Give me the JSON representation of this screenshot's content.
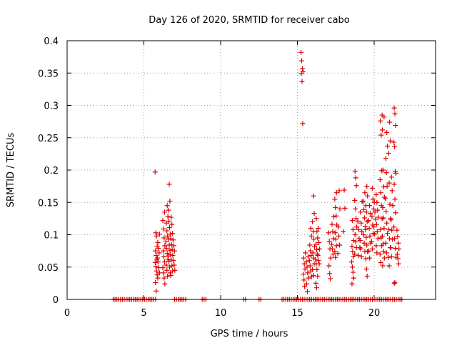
{
  "chart_data": {
    "type": "scatter",
    "title": "Day 126 of 2020, SRMTID for receiver cabo",
    "xlabel": "GPS time / hours",
    "ylabel": "SRMTID / TECUs",
    "xlim": [
      0,
      24
    ],
    "ylim": [
      0,
      0.4
    ],
    "grid": true,
    "x_ticks": [
      0,
      5,
      10,
      15,
      20
    ],
    "y_ticks": [
      0,
      0.05,
      0.1,
      0.15,
      0.2,
      0.25,
      0.3,
      0.35,
      0.4
    ],
    "x_tick_labels": [
      "0",
      "5",
      "10",
      "15",
      "20"
    ],
    "y_tick_labels": [
      "0",
      "0.05",
      "0.1",
      "0.15",
      "0.2",
      "0.25",
      "0.3",
      "0.35",
      "0.4"
    ],
    "marker": "+",
    "series": [
      {
        "name": "SRMTID",
        "color": "#e00000",
        "baseline_ranges": [
          [
            3.0,
            5.8
          ],
          [
            7.0,
            7.8
          ],
          [
            8.8,
            9.1
          ],
          [
            11.5,
            11.7
          ],
          [
            12.5,
            12.7
          ],
          [
            14.0,
            21.8
          ]
        ],
        "baseline_step": 0.12,
        "clusters": [
          {
            "x": 5.8,
            "values": [
              0.197,
              0.103,
              0.098,
              0.082,
              0.075,
              0.068,
              0.062,
              0.057,
              0.051,
              0.044,
              0.038,
              0.026,
              0.013
            ]
          },
          {
            "x": 5.95,
            "values": [
              0.101,
              0.088,
              0.079,
              0.072,
              0.064,
              0.058,
              0.049,
              0.041,
              0.033
            ]
          },
          {
            "x": 6.3,
            "values": [
              0.135,
              0.122,
              0.109,
              0.095,
              0.083,
              0.075,
              0.066,
              0.058,
              0.049,
              0.041,
              0.033,
              0.024
            ]
          },
          {
            "x": 6.5,
            "values": [
              0.145,
              0.128,
              0.118,
              0.106,
              0.098,
              0.089,
              0.079,
              0.071,
              0.062,
              0.053,
              0.045,
              0.036
            ]
          },
          {
            "x": 6.65,
            "values": [
              0.178,
              0.152,
              0.138,
              0.121,
              0.111,
              0.101,
              0.093,
              0.084,
              0.076,
              0.067,
              0.059,
              0.05,
              0.041
            ]
          },
          {
            "x": 6.8,
            "values": [
              0.127,
              0.116,
              0.102,
              0.094,
              0.085,
              0.077,
              0.069,
              0.061,
              0.052,
              0.044,
              0.037
            ]
          },
          {
            "x": 6.95,
            "values": [
              0.092,
              0.083,
              0.075,
              0.068,
              0.06,
              0.053,
              0.045
            ]
          },
          {
            "x": 15.3,
            "values": [
              0.382,
              0.369,
              0.357,
              0.352,
              0.349,
              0.337,
              0.272
            ]
          },
          {
            "x": 15.45,
            "values": [
              0.072,
              0.064,
              0.055,
              0.047,
              0.039,
              0.03,
              0.02
            ]
          },
          {
            "x": 15.65,
            "values": [
              0.066,
              0.058,
              0.05,
              0.041,
              0.033,
              0.024,
              0.012
            ]
          },
          {
            "x": 15.85,
            "values": [
              0.11,
              0.098,
              0.084,
              0.075,
              0.068,
              0.06,
              0.052,
              0.044,
              0.035
            ]
          },
          {
            "x": 16.05,
            "values": [
              0.16,
              0.133,
              0.12,
              0.105,
              0.093,
              0.082,
              0.072,
              0.064,
              0.055,
              0.046,
              0.037
            ]
          },
          {
            "x": 16.25,
            "values": [
              0.125,
              0.105,
              0.095,
              0.085,
              0.077,
              0.07,
              0.062,
              0.055,
              0.046,
              0.036,
              0.025,
              0.018
            ]
          },
          {
            "x": 16.4,
            "values": [
              0.11,
              0.088,
              0.078,
              0.068,
              0.06,
              0.055
            ]
          },
          {
            "x": 17.1,
            "values": [
              0.103,
              0.09,
              0.078,
              0.064,
              0.052,
              0.04,
              0.032
            ]
          },
          {
            "x": 17.3,
            "values": [
              0.128,
              0.116,
              0.105,
              0.094,
              0.085,
              0.078,
              0.07
            ]
          },
          {
            "x": 17.5,
            "values": [
              0.165,
              0.155,
              0.142,
              0.129,
              0.115,
              0.103,
              0.093,
              0.083,
              0.074,
              0.065
            ]
          },
          {
            "x": 17.7,
            "values": [
              0.168,
              0.14,
              0.112,
              0.098,
              0.084,
              0.071
            ]
          },
          {
            "x": 18.05,
            "values": [
              0.169,
              0.141,
              0.105
            ]
          },
          {
            "x": 18.6,
            "values": [
              0.122,
              0.108,
              0.091,
              0.082,
              0.074,
              0.066,
              0.058,
              0.05,
              0.042,
              0.033,
              0.024
            ]
          },
          {
            "x": 18.8,
            "values": [
              0.198,
              0.188,
              0.176,
              0.153,
              0.14,
              0.125,
              0.112,
              0.1,
              0.089,
              0.08,
              0.07
            ]
          },
          {
            "x": 19.0,
            "values": [
              0.121,
              0.108,
              0.094,
              0.08,
              0.068
            ]
          },
          {
            "x": 19.15,
            "values": [
              0.151,
              0.135,
              0.118,
              0.105,
              0.091,
              0.078,
              0.066
            ]
          },
          {
            "x": 19.35,
            "values": [
              0.165,
              0.152,
              0.139,
              0.126,
              0.113,
              0.1,
              0.087,
              0.074
            ]
          },
          {
            "x": 19.5,
            "values": [
              0.175,
              0.16,
              0.145,
              0.135,
              0.12,
              0.108,
              0.096,
              0.084,
              0.074,
              0.063,
              0.047,
              0.036
            ]
          },
          {
            "x": 19.7,
            "values": [
              0.145,
              0.133,
              0.122,
              0.11,
              0.098,
              0.087,
              0.075,
              0.064
            ]
          },
          {
            "x": 19.9,
            "values": [
              0.172,
              0.155,
              0.14,
              0.128,
              0.115,
              0.102,
              0.09,
              0.078
            ]
          },
          {
            "x": 20.05,
            "values": [
              0.15,
              0.135,
              0.124,
              0.112,
              0.101
            ]
          },
          {
            "x": 20.2,
            "values": [
              0.162,
              0.15,
              0.138,
              0.127,
              0.116,
              0.105,
              0.094,
              0.083,
              0.072
            ]
          },
          {
            "x": 20.45,
            "values": [
              0.285,
              0.276,
              0.254,
              0.199,
              0.185,
              0.165,
              0.145,
              0.125,
              0.108,
              0.095,
              0.083,
              0.07,
              0.057
            ]
          },
          {
            "x": 20.6,
            "values": [
              0.282,
              0.262,
              0.2,
              0.174,
              0.158,
              0.142,
              0.126,
              0.11,
              0.098,
              0.086,
              0.074,
              0.064,
              0.052
            ]
          },
          {
            "x": 20.8,
            "values": [
              0.258,
              0.237,
              0.218,
              0.196,
              0.175,
              0.156,
              0.136,
              0.118,
              0.102,
              0.087,
              0.072
            ]
          },
          {
            "x": 21.0,
            "values": [
              0.274,
              0.245,
              0.226,
              0.18,
              0.147,
              0.125,
              0.108,
              0.094,
              0.08,
              0.065,
              0.052
            ]
          },
          {
            "x": 21.15,
            "values": [
              0.189,
              0.168,
              0.145,
              0.123,
              0.107,
              0.093,
              0.08,
              0.066
            ]
          },
          {
            "x": 21.35,
            "values": [
              0.296,
              0.287,
              0.269,
              0.243,
              0.236,
              0.198,
              0.195,
              0.178,
              0.155,
              0.134,
              0.112,
              0.094,
              0.079,
              0.065,
              0.025,
              0.026
            ]
          },
          {
            "x": 21.55,
            "values": [
              0.107,
              0.097,
              0.087,
              0.078,
              0.07,
              0.063,
              0.055
            ]
          }
        ]
      }
    ]
  }
}
